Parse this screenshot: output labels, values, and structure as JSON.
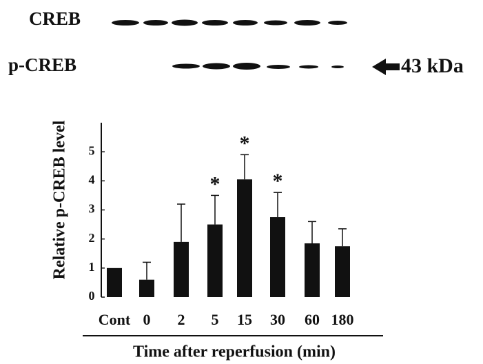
{
  "blot": {
    "rows": [
      "CREB",
      "p-CREB"
    ],
    "marker": "43 kDa"
  },
  "chart_data": {
    "type": "bar",
    "y_label": "Relative  p-CREB  level",
    "x_label": "Time after reperfusion (min)",
    "categories": [
      "Cont",
      "0",
      "2",
      "5",
      "15",
      "30",
      "60",
      "180"
    ],
    "values": [
      1.0,
      0.6,
      1.9,
      2.5,
      4.05,
      2.75,
      1.85,
      1.75
    ],
    "error": [
      0,
      0.6,
      1.3,
      1.0,
      0.85,
      0.85,
      0.75,
      0.6
    ],
    "color": "#111111",
    "ylim": [
      0,
      6
    ],
    "yticks": [
      0,
      1,
      2,
      3,
      4,
      5
    ],
    "annotations": [
      {
        "text": "*",
        "category": "5"
      },
      {
        "text": "*",
        "category": "15"
      },
      {
        "text": "*",
        "category": "30"
      }
    ]
  }
}
